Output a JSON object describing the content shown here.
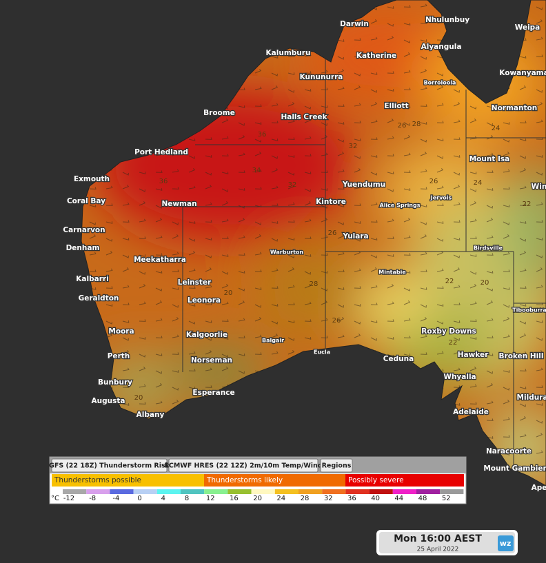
{
  "places": [
    {
      "name": "Darwin"
    },
    {
      "name": "Nhulunbuy"
    },
    {
      "name": "Weipa"
    },
    {
      "name": "Kalumburu"
    },
    {
      "name": "Katherine"
    },
    {
      "name": "Alyangula"
    },
    {
      "name": "Borroloola"
    },
    {
      "name": "Kowanyama"
    },
    {
      "name": "Kununurra"
    },
    {
      "name": "Broome"
    },
    {
      "name": "Halls Creek"
    },
    {
      "name": "Elliott"
    },
    {
      "name": "Normanton"
    },
    {
      "name": "Port Hedland"
    },
    {
      "name": "Mount Isa"
    },
    {
      "name": "Exmouth"
    },
    {
      "name": "Yuendumu"
    },
    {
      "name": "Jervois"
    },
    {
      "name": "Alice Springs"
    },
    {
      "name": "Win"
    },
    {
      "name": "Coral Bay"
    },
    {
      "name": "Newman"
    },
    {
      "name": "Kintore"
    },
    {
      "name": "Carnarvon"
    },
    {
      "name": "Yulara"
    },
    {
      "name": "Birdsville"
    },
    {
      "name": "Denham"
    },
    {
      "name": "Meekatharra"
    },
    {
      "name": "Warburton"
    },
    {
      "name": "Mintabie"
    },
    {
      "name": "Kalbarri"
    },
    {
      "name": "Leinster"
    },
    {
      "name": "Geraldton"
    },
    {
      "name": "Leonora"
    },
    {
      "name": "Tibooburra"
    },
    {
      "name": "Moora"
    },
    {
      "name": "Kalgoorlie"
    },
    {
      "name": "Balgair"
    },
    {
      "name": "Roxby Downs"
    },
    {
      "name": "Perth"
    },
    {
      "name": "Norseman"
    },
    {
      "name": "Eucla"
    },
    {
      "name": "Hawker"
    },
    {
      "name": "Broken Hill"
    },
    {
      "name": "Ceduna"
    },
    {
      "name": "Bunbury"
    },
    {
      "name": "Whyalla"
    },
    {
      "name": "Augusta"
    },
    {
      "name": "Esperance"
    },
    {
      "name": "Mildura"
    },
    {
      "name": "Albany"
    },
    {
      "name": "Adelaide"
    },
    {
      "name": "Naracoorte"
    },
    {
      "name": "Mount Gambier"
    },
    {
      "name": "Ape"
    }
  ],
  "contours": [
    36,
    34,
    36,
    32,
    32,
    28,
    26,
    26,
    26,
    28,
    26,
    24,
    22,
    22,
    20,
    20,
    24,
    20,
    22
  ],
  "legend": {
    "buttons": [
      "GFS (22 18Z) Thunderstorm Risk",
      "ECMWF HRES (22 12Z) 2m/10m Temp/Wind",
      "Regions"
    ],
    "risk": [
      {
        "label": "Thunderstorms possible",
        "color": "#f8c000"
      },
      {
        "label": "Thunderstorms likely",
        "color": "#f06a00"
      },
      {
        "label": "Possibly severe",
        "color": "#e80000"
      }
    ],
    "scale_unit": "°C",
    "scale": [
      {
        "value": -12,
        "color": "#a8a8a8"
      },
      {
        "value": -8,
        "color": "#d8a0ec"
      },
      {
        "value": -4,
        "color": "#5a6ae0"
      },
      {
        "value": 0,
        "color": "#b8d0f4"
      },
      {
        "value": 4,
        "color": "#5cf4f0"
      },
      {
        "value": 8,
        "color": "#50c4c0"
      },
      {
        "value": 12,
        "color": "#88f090"
      },
      {
        "value": 16,
        "color": "#98c030"
      },
      {
        "value": 20,
        "color": "#fff8c0"
      },
      {
        "value": 24,
        "color": "#f4c020"
      },
      {
        "value": 28,
        "color": "#f0a020"
      },
      {
        "value": 32,
        "color": "#f07020"
      },
      {
        "value": 36,
        "color": "#e03020"
      },
      {
        "value": 40,
        "color": "#c01010"
      },
      {
        "value": 44,
        "color": "#f020c8"
      },
      {
        "value": 48,
        "color": "#a020a0"
      },
      {
        "value": 52,
        "color": "#9a9a9a"
      }
    ]
  },
  "time": {
    "label": "Mon 16:00 AEST",
    "date": "25 April 2022",
    "logo": "wz"
  }
}
